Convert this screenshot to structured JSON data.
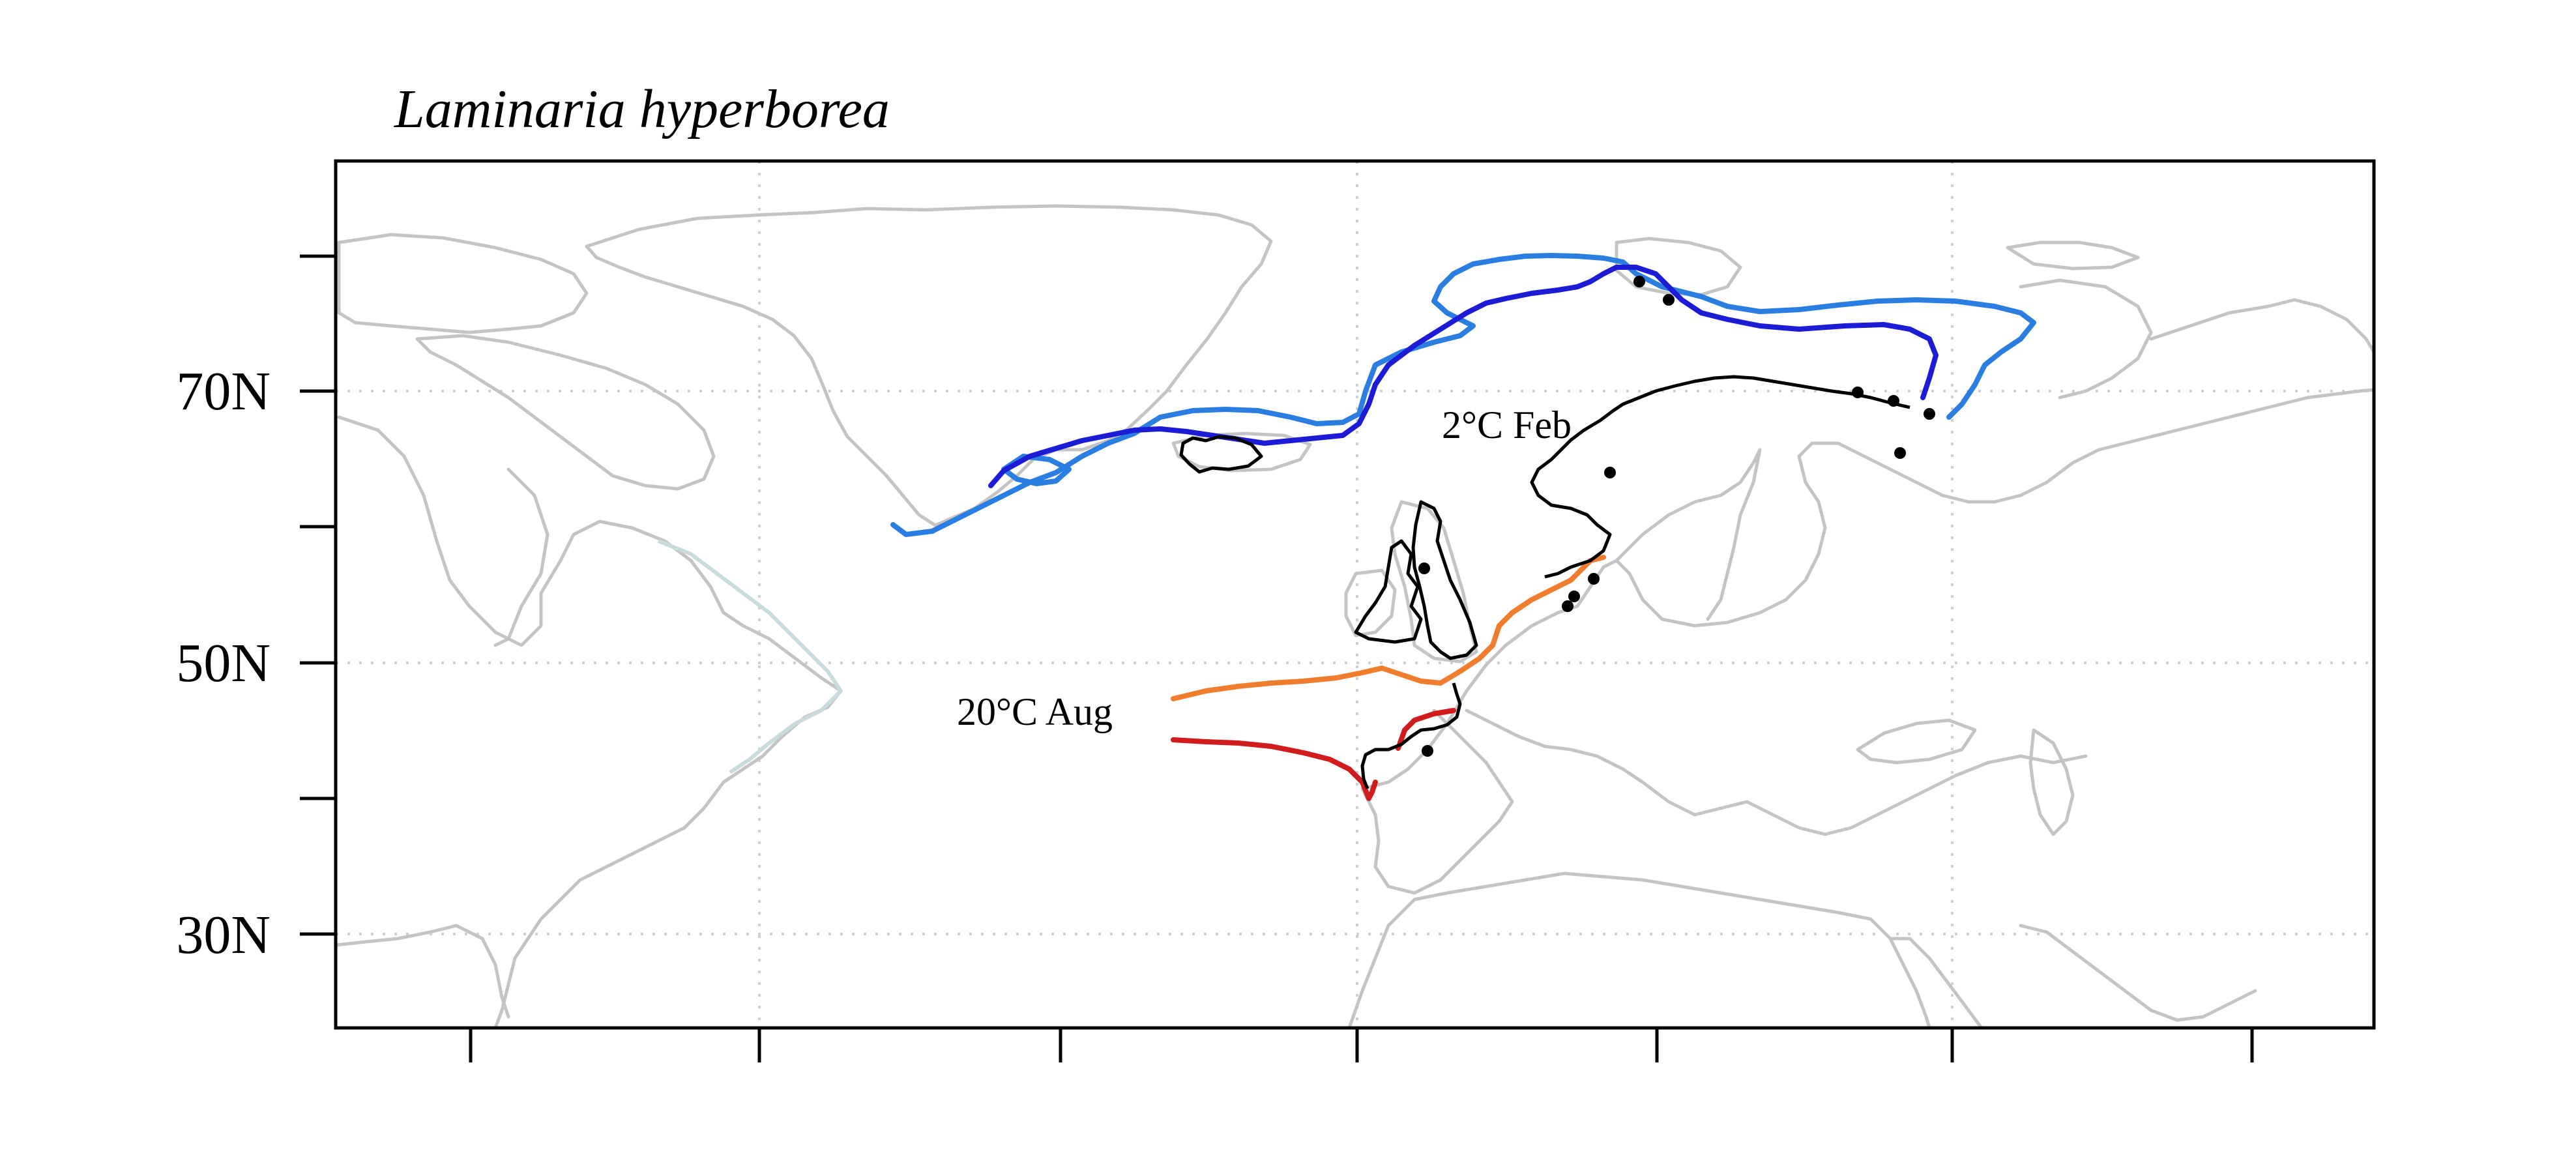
{
  "map": {
    "title": "Laminaria hyperborea",
    "y_axis": {
      "labels": [
        {
          "lat": 70,
          "text": "70N"
        },
        {
          "lat": 50,
          "text": "50N"
        },
        {
          "lat": 30,
          "text": "30N"
        }
      ]
    },
    "isotherms": [
      {
        "name": "2°C Feb",
        "label": "2°C Feb"
      },
      {
        "name": "20°C Aug",
        "label": "20°C Aug"
      }
    ],
    "colors": {
      "cold_isotherm_present": "#2a7de1",
      "cold_isotherm_future": "#1c1cd6",
      "warm_isotherm_present": "#ef7d2d",
      "warm_isotherm_future": "#d01c1c",
      "distribution": "#000000",
      "coastline": "#c4c4c4",
      "records": "#000000"
    }
  }
}
